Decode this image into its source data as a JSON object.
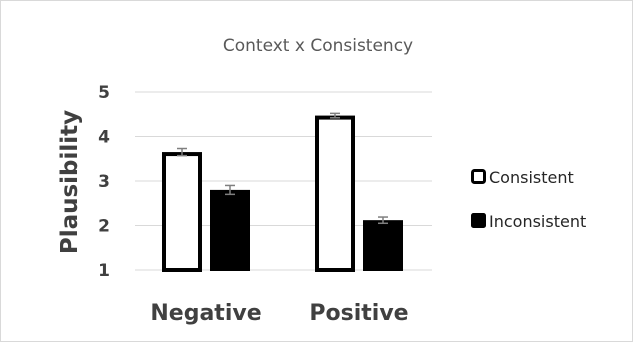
{
  "chart_data": {
    "type": "bar",
    "title": "Context x Consistency",
    "xlabel": "",
    "ylabel": "Plausibility",
    "categories": [
      "Negative",
      "Positive"
    ],
    "ylim": [
      1,
      5
    ],
    "yticks": [
      "1",
      "2",
      "3",
      "4",
      "5"
    ],
    "grid": true,
    "legend_position": "right",
    "series": [
      {
        "name": "Consistent",
        "values": [
          3.65,
          4.47
        ],
        "errors": [
          0.08,
          0.05
        ],
        "fill": "#ffffff",
        "stroke": "#000000"
      },
      {
        "name": "Inconsistent",
        "values": [
          2.8,
          2.12
        ],
        "errors": [
          0.1,
          0.07
        ],
        "fill": "#000000",
        "stroke": "#000000"
      }
    ]
  }
}
